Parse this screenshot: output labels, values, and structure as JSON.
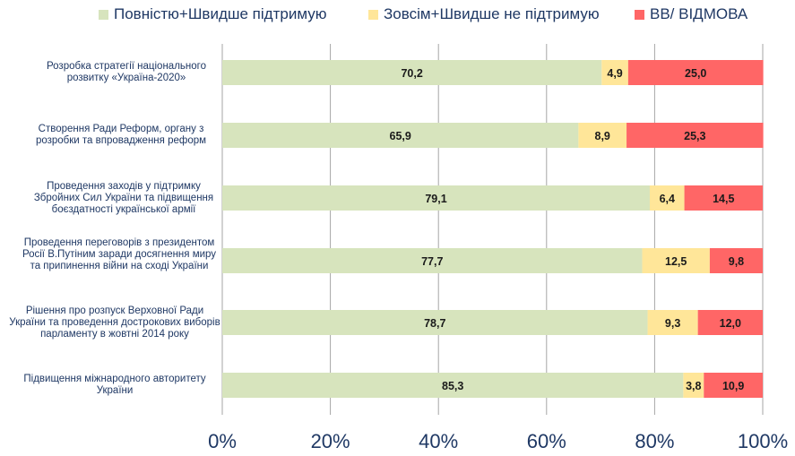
{
  "chart_data": {
    "type": "bar",
    "orientation": "horizontal",
    "stacked": true,
    "categories": [
      "Розробка стратегії національного розвитку «Україна-2020»",
      "Створення Ради Реформ, органу з розробки та впровадження реформ",
      "Проведення заходів у підтримку Збройних Сил України та підвищення боєздатності української армії",
      "Проведення переговорів з президентом Росії В.Путіним заради досягнення миру та припинення  війни на сході України",
      "Рішення про розпуск Верховної Ради України та проведення дострокових виборів парламенту в жовтні 2014 року",
      "Підвищення  міжнародного авторитету України"
    ],
    "series": [
      {
        "name": "Повністю+Швидше підтримую",
        "color": "#d7e4bd",
        "values": [
          70.2,
          65.9,
          79.1,
          77.7,
          78.7,
          85.3
        ]
      },
      {
        "name": "Зовсім+Швидше не підтримую",
        "color": "#ffe699",
        "values": [
          4.9,
          8.9,
          6.4,
          12.5,
          9.3,
          3.8
        ]
      },
      {
        "name": "ВВ/ ВІДМОВА",
        "color": "#ff6666",
        "values": [
          25.0,
          25.3,
          14.5,
          9.8,
          12.0,
          10.9
        ]
      }
    ],
    "value_labels": [
      [
        "70,2",
        "65,9",
        "79,1",
        "77,7",
        "78,7",
        "85,3"
      ],
      [
        "4,9",
        "8,9",
        "6,4",
        "12,5",
        "9,3",
        "3,8"
      ],
      [
        "25,0",
        "25,3",
        "14,5",
        "9,8",
        "12,0",
        "10,9"
      ]
    ],
    "xlim": [
      0,
      100
    ],
    "xticks": [
      "0%",
      "20%",
      "40%",
      "60%",
      "80%",
      "100%"
    ],
    "grid": true,
    "legend_position": "top"
  }
}
